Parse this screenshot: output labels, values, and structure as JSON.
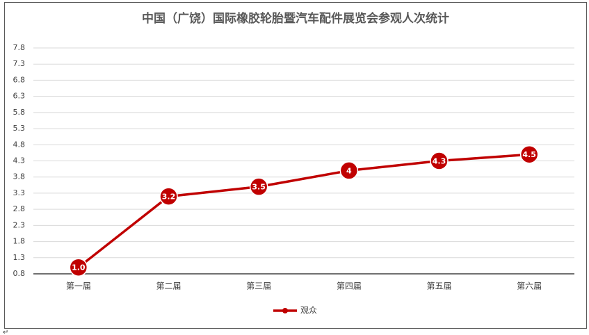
{
  "chart_data": {
    "type": "line",
    "title": "中国（广饶）国际橡胶轮胎暨汽车配件展览会参观人次统计",
    "categories": [
      "第一届",
      "第二届",
      "第三届",
      "第四届",
      "第五届",
      "第六届"
    ],
    "series": [
      {
        "name": "观众",
        "color": "#c00000",
        "values": [
          1.0,
          3.2,
          3.5,
          4,
          4.3,
          4.5
        ],
        "value_labels": [
          "1.0",
          "3.2",
          "3.5",
          "4",
          "4.3",
          "4.5"
        ]
      }
    ],
    "ylim": [
      0.8,
      7.8
    ],
    "yticks": [
      0.8,
      1.3,
      1.8,
      2.3,
      2.8,
      3.3,
      3.8,
      4.3,
      4.8,
      5.3,
      5.8,
      6.3,
      6.8,
      7.3,
      7.8
    ],
    "grid": true,
    "legend": "bottom"
  },
  "document": {
    "paragraph_mark": "↵"
  }
}
